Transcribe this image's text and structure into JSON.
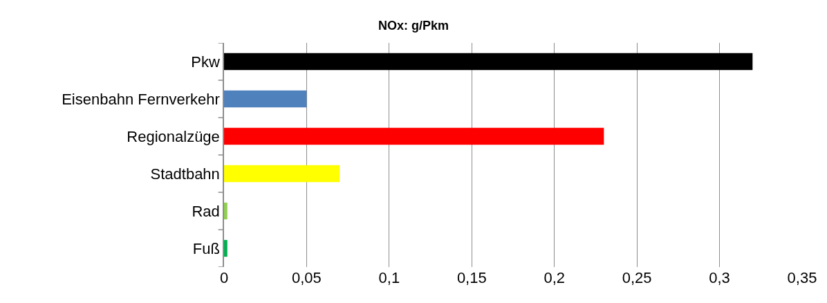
{
  "chart_data": {
    "type": "bar",
    "title": "NOx: g/Pkm",
    "orientation": "horizontal",
    "categories": [
      "Pkw",
      "Eisenbahn Fernverkehr",
      "Regionalzüge",
      "Stadtbahn",
      "Rad",
      "Fuß"
    ],
    "values": [
      0.32,
      0.05,
      0.23,
      0.07,
      0.002,
      0.002
    ],
    "colors": [
      "#000000",
      "#4f81bd",
      "#ff0000",
      "#ffff00",
      "#92d050",
      "#00b050"
    ],
    "xlim": [
      0,
      0.35
    ],
    "xticks": [
      {
        "value": 0,
        "label": "0"
      },
      {
        "value": 0.05,
        "label": "0,05"
      },
      {
        "value": 0.1,
        "label": "0,1"
      },
      {
        "value": 0.15,
        "label": "0,15"
      },
      {
        "value": 0.2,
        "label": "0,2"
      },
      {
        "value": 0.25,
        "label": "0,25"
      },
      {
        "value": 0.3,
        "label": "0,3"
      },
      {
        "value": 0.35,
        "label": "0,35"
      }
    ],
    "grid": "x"
  }
}
